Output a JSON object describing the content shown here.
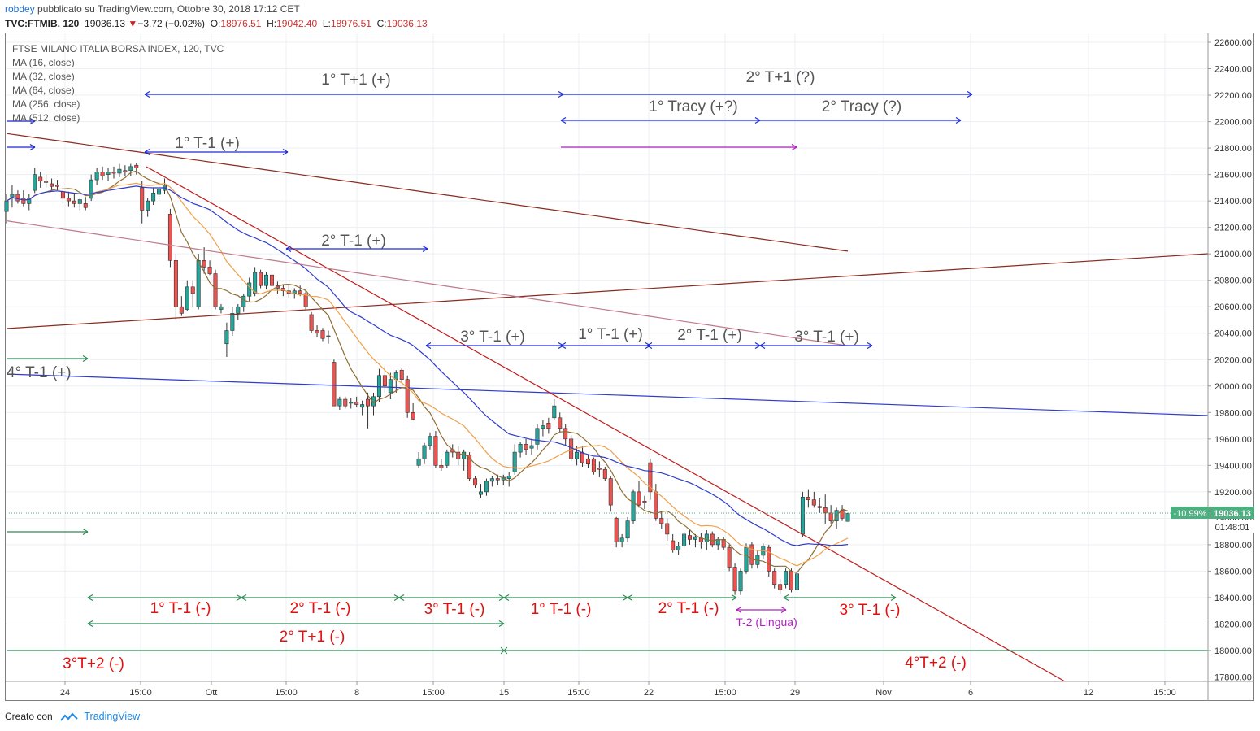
{
  "header": {
    "publisher": "robdey",
    "published_text": "pubblicato su TradingView.com, Ottobre 30, 2018 17:12 CET",
    "symbol": "TVC:FTMIB, 120",
    "last": "19036.13",
    "change": "−3.72 (−0.02%)",
    "o_label": "O:",
    "o": "18976.51",
    "h_label": "H:",
    "h": "19042.40",
    "l_label": "L:",
    "l": "18976.51",
    "c_label": "C:",
    "c": "19036.13"
  },
  "legend": {
    "title": "FTSE MILANO ITALIA BORSA INDEX, 120, TVC",
    "ma": [
      "MA (16, close)",
      "MA (32, close)",
      "MA (64, close)",
      "MA (256, close)",
      "MA (512, close)"
    ]
  },
  "footer": {
    "created_with": "Creato con",
    "brand": "TradingView"
  },
  "colors": {
    "up": "#26a69a",
    "down": "#ef5350",
    "ma16": "#8d6e34",
    "ma32": "#f0a04b",
    "ma64": "#2f3ccc",
    "ma256": "#c07a8a",
    "ma512": "#8b2b1f",
    "blue_ann": "#1c2bd6",
    "green_ann": "#2e8b57",
    "red_text": "#e01010",
    "gray_text": "#555555",
    "purple": "#b020c0"
  },
  "chart_data": {
    "type": "candlestick",
    "title": "FTSE MILANO ITALIA BORSA INDEX, 120, TVC",
    "ylim": [
      17800,
      22700
    ],
    "y_ticks": [
      "22600.00",
      "22400.00",
      "22200.00",
      "22000.00",
      "21800.00",
      "21600.00",
      "21400.00",
      "21200.00",
      "21000.00",
      "20800.00",
      "20600.00",
      "20400.00",
      "20200.00",
      "20000.00",
      "19800.00",
      "19600.00",
      "19400.00",
      "19200.00",
      "19000.00",
      "18800.00",
      "18600.00",
      "18400.00",
      "18200.00",
      "18000.00",
      "17800.00"
    ],
    "x_ticks": [
      "24",
      "15:00",
      "Ott",
      "15:00",
      "8",
      "15:00",
      "15",
      "15:00",
      "22",
      "15:00",
      "29",
      "Nov",
      "6",
      "12",
      "15:00"
    ],
    "last_price": "19036.13",
    "last_price_value": 19036.13,
    "price_change_badge": "-10.99%",
    "countdown": "01:48:01",
    "candles": [
      [
        21320,
        21450,
        21230,
        21400
      ],
      [
        21430,
        21520,
        21350,
        21450
      ],
      [
        21450,
        21480,
        21380,
        21400
      ],
      [
        21420,
        21480,
        21360,
        21380
      ],
      [
        21380,
        21450,
        21330,
        21420
      ],
      [
        21480,
        21650,
        21460,
        21600
      ],
      [
        21580,
        21620,
        21500,
        21550
      ],
      [
        21550,
        21600,
        21500,
        21540
      ],
      [
        21530,
        21570,
        21470,
        21510
      ],
      [
        21520,
        21560,
        21480,
        21510
      ],
      [
        21470,
        21510,
        21380,
        21420
      ],
      [
        21420,
        21470,
        21360,
        21400
      ],
      [
        21400,
        21460,
        21350,
        21380
      ],
      [
        21380,
        21420,
        21330,
        21410
      ],
      [
        21380,
        21430,
        21330,
        21350
      ],
      [
        21420,
        21600,
        21400,
        21560
      ],
      [
        21560,
        21650,
        21520,
        21620
      ],
      [
        21620,
        21660,
        21560,
        21590
      ],
      [
        21600,
        21650,
        21550,
        21620
      ],
      [
        21620,
        21660,
        21570,
        21610
      ],
      [
        21610,
        21680,
        21580,
        21640
      ],
      [
        21630,
        21670,
        21590,
        21620
      ],
      [
        21630,
        21680,
        21590,
        21660
      ],
      [
        21670,
        21690,
        21600,
        21650
      ],
      [
        21500,
        21550,
        21230,
        21330
      ],
      [
        21330,
        21420,
        21280,
        21400
      ],
      [
        21400,
        21500,
        21370,
        21460
      ],
      [
        21450,
        21530,
        21400,
        21490
      ],
      [
        21480,
        21570,
        21450,
        21520
      ],
      [
        21300,
        21340,
        20900,
        20950
      ],
      [
        20950,
        21000,
        20500,
        20600
      ],
      [
        20600,
        20680,
        20530,
        20550
      ],
      [
        20580,
        20800,
        20570,
        20750
      ],
      [
        20750,
        20800,
        20600,
        20700
      ],
      [
        20600,
        21000,
        20580,
        20950
      ],
      [
        20950,
        21050,
        20850,
        20900
      ],
      [
        20900,
        20950,
        20840,
        20850
      ],
      [
        20850,
        20880,
        20580,
        20600
      ],
      [
        20580,
        20620,
        20550,
        20600
      ],
      [
        20320,
        20480,
        20220,
        20420
      ],
      [
        20420,
        20600,
        20380,
        20550
      ],
      [
        20550,
        20620,
        20500,
        20600
      ],
      [
        20600,
        20700,
        20560,
        20680
      ],
      [
        20680,
        20820,
        20640,
        20780
      ],
      [
        20700,
        20900,
        20680,
        20860
      ],
      [
        20860,
        20880,
        20740,
        20760
      ],
      [
        20760,
        20860,
        20730,
        20840
      ],
      [
        20840,
        20900,
        20740,
        20760
      ],
      [
        20760,
        20790,
        20700,
        20740
      ],
      [
        20740,
        20770,
        20680,
        20720
      ],
      [
        20720,
        20760,
        20670,
        20700
      ],
      [
        20700,
        20740,
        20660,
        20720
      ],
      [
        20720,
        20760,
        20680,
        20700
      ],
      [
        20700,
        20730,
        20580,
        20600
      ],
      [
        20540,
        20560,
        20400,
        20420
      ],
      [
        20420,
        20460,
        20370,
        20400
      ],
      [
        20420,
        20440,
        20340,
        20360
      ],
      [
        20380,
        20420,
        20320,
        20380
      ],
      [
        20180,
        20200,
        19850,
        19850
      ],
      [
        19850,
        19920,
        19820,
        19900
      ],
      [
        19900,
        19920,
        19830,
        19850
      ],
      [
        19870,
        19910,
        19830,
        19880
      ],
      [
        19880,
        19920,
        19840,
        19860
      ],
      [
        19840,
        19890,
        19780,
        19860
      ],
      [
        19900,
        19950,
        19680,
        19850
      ],
      [
        19850,
        19950,
        19780,
        19920
      ],
      [
        19920,
        20130,
        19880,
        20080
      ],
      [
        20080,
        20150,
        19950,
        20000
      ],
      [
        19950,
        20100,
        19900,
        20050
      ],
      [
        20050,
        20120,
        19950,
        20100
      ],
      [
        20120,
        20140,
        20020,
        20050
      ],
      [
        20050,
        20080,
        19760,
        19800
      ],
      [
        19800,
        19870,
        19740,
        19750
      ],
      [
        19400,
        19500,
        19380,
        19450
      ],
      [
        19450,
        19570,
        19410,
        19550
      ],
      [
        19550,
        19650,
        19520,
        19620
      ],
      [
        19620,
        19660,
        19380,
        19400
      ],
      [
        19400,
        19450,
        19360,
        19380
      ],
      [
        19400,
        19520,
        19380,
        19500
      ],
      [
        19520,
        19560,
        19460,
        19500
      ],
      [
        19500,
        19550,
        19400,
        19450
      ],
      [
        19450,
        19520,
        19360,
        19500
      ],
      [
        19480,
        19500,
        19280,
        19300
      ],
      [
        19300,
        19320,
        19230,
        19250
      ],
      [
        19180,
        19260,
        19150,
        19200
      ],
      [
        19200,
        19300,
        19170,
        19280
      ],
      [
        19280,
        19320,
        19240,
        19300
      ],
      [
        19300,
        19330,
        19250,
        19290
      ],
      [
        19290,
        19330,
        19250,
        19310
      ],
      [
        19300,
        19350,
        19240,
        19320
      ],
      [
        19350,
        19560,
        19330,
        19500
      ],
      [
        19500,
        19580,
        19460,
        19560
      ],
      [
        19560,
        19600,
        19480,
        19520
      ],
      [
        19530,
        19600,
        19480,
        19550
      ],
      [
        19560,
        19710,
        19520,
        19680
      ],
      [
        19680,
        19740,
        19620,
        19700
      ],
      [
        19720,
        19760,
        19640,
        19680
      ],
      [
        19760,
        19900,
        19740,
        19850
      ],
      [
        19760,
        19800,
        19650,
        19680
      ],
      [
        19680,
        19710,
        19550,
        19600
      ],
      [
        19600,
        19630,
        19430,
        19450
      ],
      [
        19450,
        19550,
        19400,
        19500
      ],
      [
        19500,
        19550,
        19390,
        19420
      ],
      [
        19450,
        19480,
        19380,
        19410
      ],
      [
        19450,
        19460,
        19330,
        19350
      ],
      [
        19380,
        19430,
        19310,
        19370
      ],
      [
        19370,
        19390,
        19280,
        19300
      ],
      [
        19300,
        19320,
        19050,
        19100
      ],
      [
        19000,
        19010,
        18780,
        18820
      ],
      [
        18820,
        18880,
        18780,
        18850
      ],
      [
        18850,
        19010,
        18820,
        18980
      ],
      [
        18980,
        19220,
        18960,
        19200
      ],
      [
        19200,
        19280,
        19080,
        19100
      ],
      [
        19130,
        19170,
        19070,
        19120
      ],
      [
        19420,
        19450,
        19140,
        19200
      ],
      [
        19200,
        19260,
        18980,
        19000
      ],
      [
        19000,
        19050,
        18920,
        18960
      ],
      [
        18960,
        19000,
        18830,
        18880
      ],
      [
        18830,
        18880,
        18740,
        18760
      ],
      [
        18760,
        18820,
        18720,
        18790
      ],
      [
        18790,
        18900,
        18770,
        18880
      ],
      [
        18870,
        18910,
        18800,
        18840
      ],
      [
        18840,
        18880,
        18780,
        18860
      ],
      [
        18850,
        18890,
        18770,
        18820
      ],
      [
        18820,
        18910,
        18760,
        18880
      ],
      [
        18880,
        18900,
        18780,
        18800
      ],
      [
        18800,
        18860,
        18760,
        18840
      ],
      [
        18840,
        18860,
        18760,
        18780
      ],
      [
        18780,
        18800,
        18600,
        18630
      ],
      [
        18630,
        18660,
        18420,
        18450
      ],
      [
        18450,
        18620,
        18420,
        18600
      ],
      [
        18600,
        18810,
        18580,
        18780
      ],
      [
        18800,
        18820,
        18620,
        18650
      ],
      [
        18650,
        18760,
        18620,
        18720
      ],
      [
        18720,
        18810,
        18690,
        18790
      ],
      [
        18780,
        18800,
        18560,
        18600
      ],
      [
        18600,
        18620,
        18470,
        18500
      ],
      [
        18500,
        18540,
        18430,
        18460
      ],
      [
        18500,
        18620,
        18470,
        18600
      ],
      [
        18600,
        18620,
        18440,
        18460
      ],
      [
        18460,
        18600,
        18440,
        18580
      ],
      [
        18880,
        19200,
        18860,
        19160
      ],
      [
        19160,
        19220,
        19080,
        19140
      ],
      [
        19140,
        19200,
        19080,
        19100
      ],
      [
        19090,
        19150,
        19040,
        19080
      ],
      [
        19080,
        19180,
        18960,
        19040
      ],
      [
        19040,
        19100,
        18960,
        18980
      ],
      [
        18980,
        19080,
        18920,
        19060
      ],
      [
        19060,
        19100,
        18980,
        19000
      ],
      [
        18976.51,
        19042.4,
        18976.51,
        19036.13
      ]
    ]
  },
  "annotations": {
    "blue_labels": {
      "t1p1": "1° T+1 (+)",
      "t2p1": "2° T+1 (?)",
      "tracy1": "1° Tracy (+?)",
      "tracy2": "2° Tracy (?)",
      "t1m1_top": "1° T-1 (+)",
      "t2m1_mid": "2° T-1 (+)",
      "t3m1_a": "3° T-1 (+)",
      "t1m1_b": "1° T-1 (+)",
      "t2m1_b": "2° T-1 (+)",
      "t3m1_b": "3° T-1 (+)",
      "t4m1": "4° T-1 (+)"
    },
    "red_labels": {
      "r1": "1° T-1 (-)",
      "r2": "2° T-1 (-)",
      "r3": "3° T-1 (-)",
      "r4": "1° T-1 (-)",
      "r5": "2° T-1 (-)",
      "r6": "3° T-1 (-)",
      "r7": "2° T+1 (-)",
      "r8": "3°T+2 (-)",
      "r9": "4°T+2 (-)"
    },
    "purple_label": "T-2 (Lingua)"
  }
}
